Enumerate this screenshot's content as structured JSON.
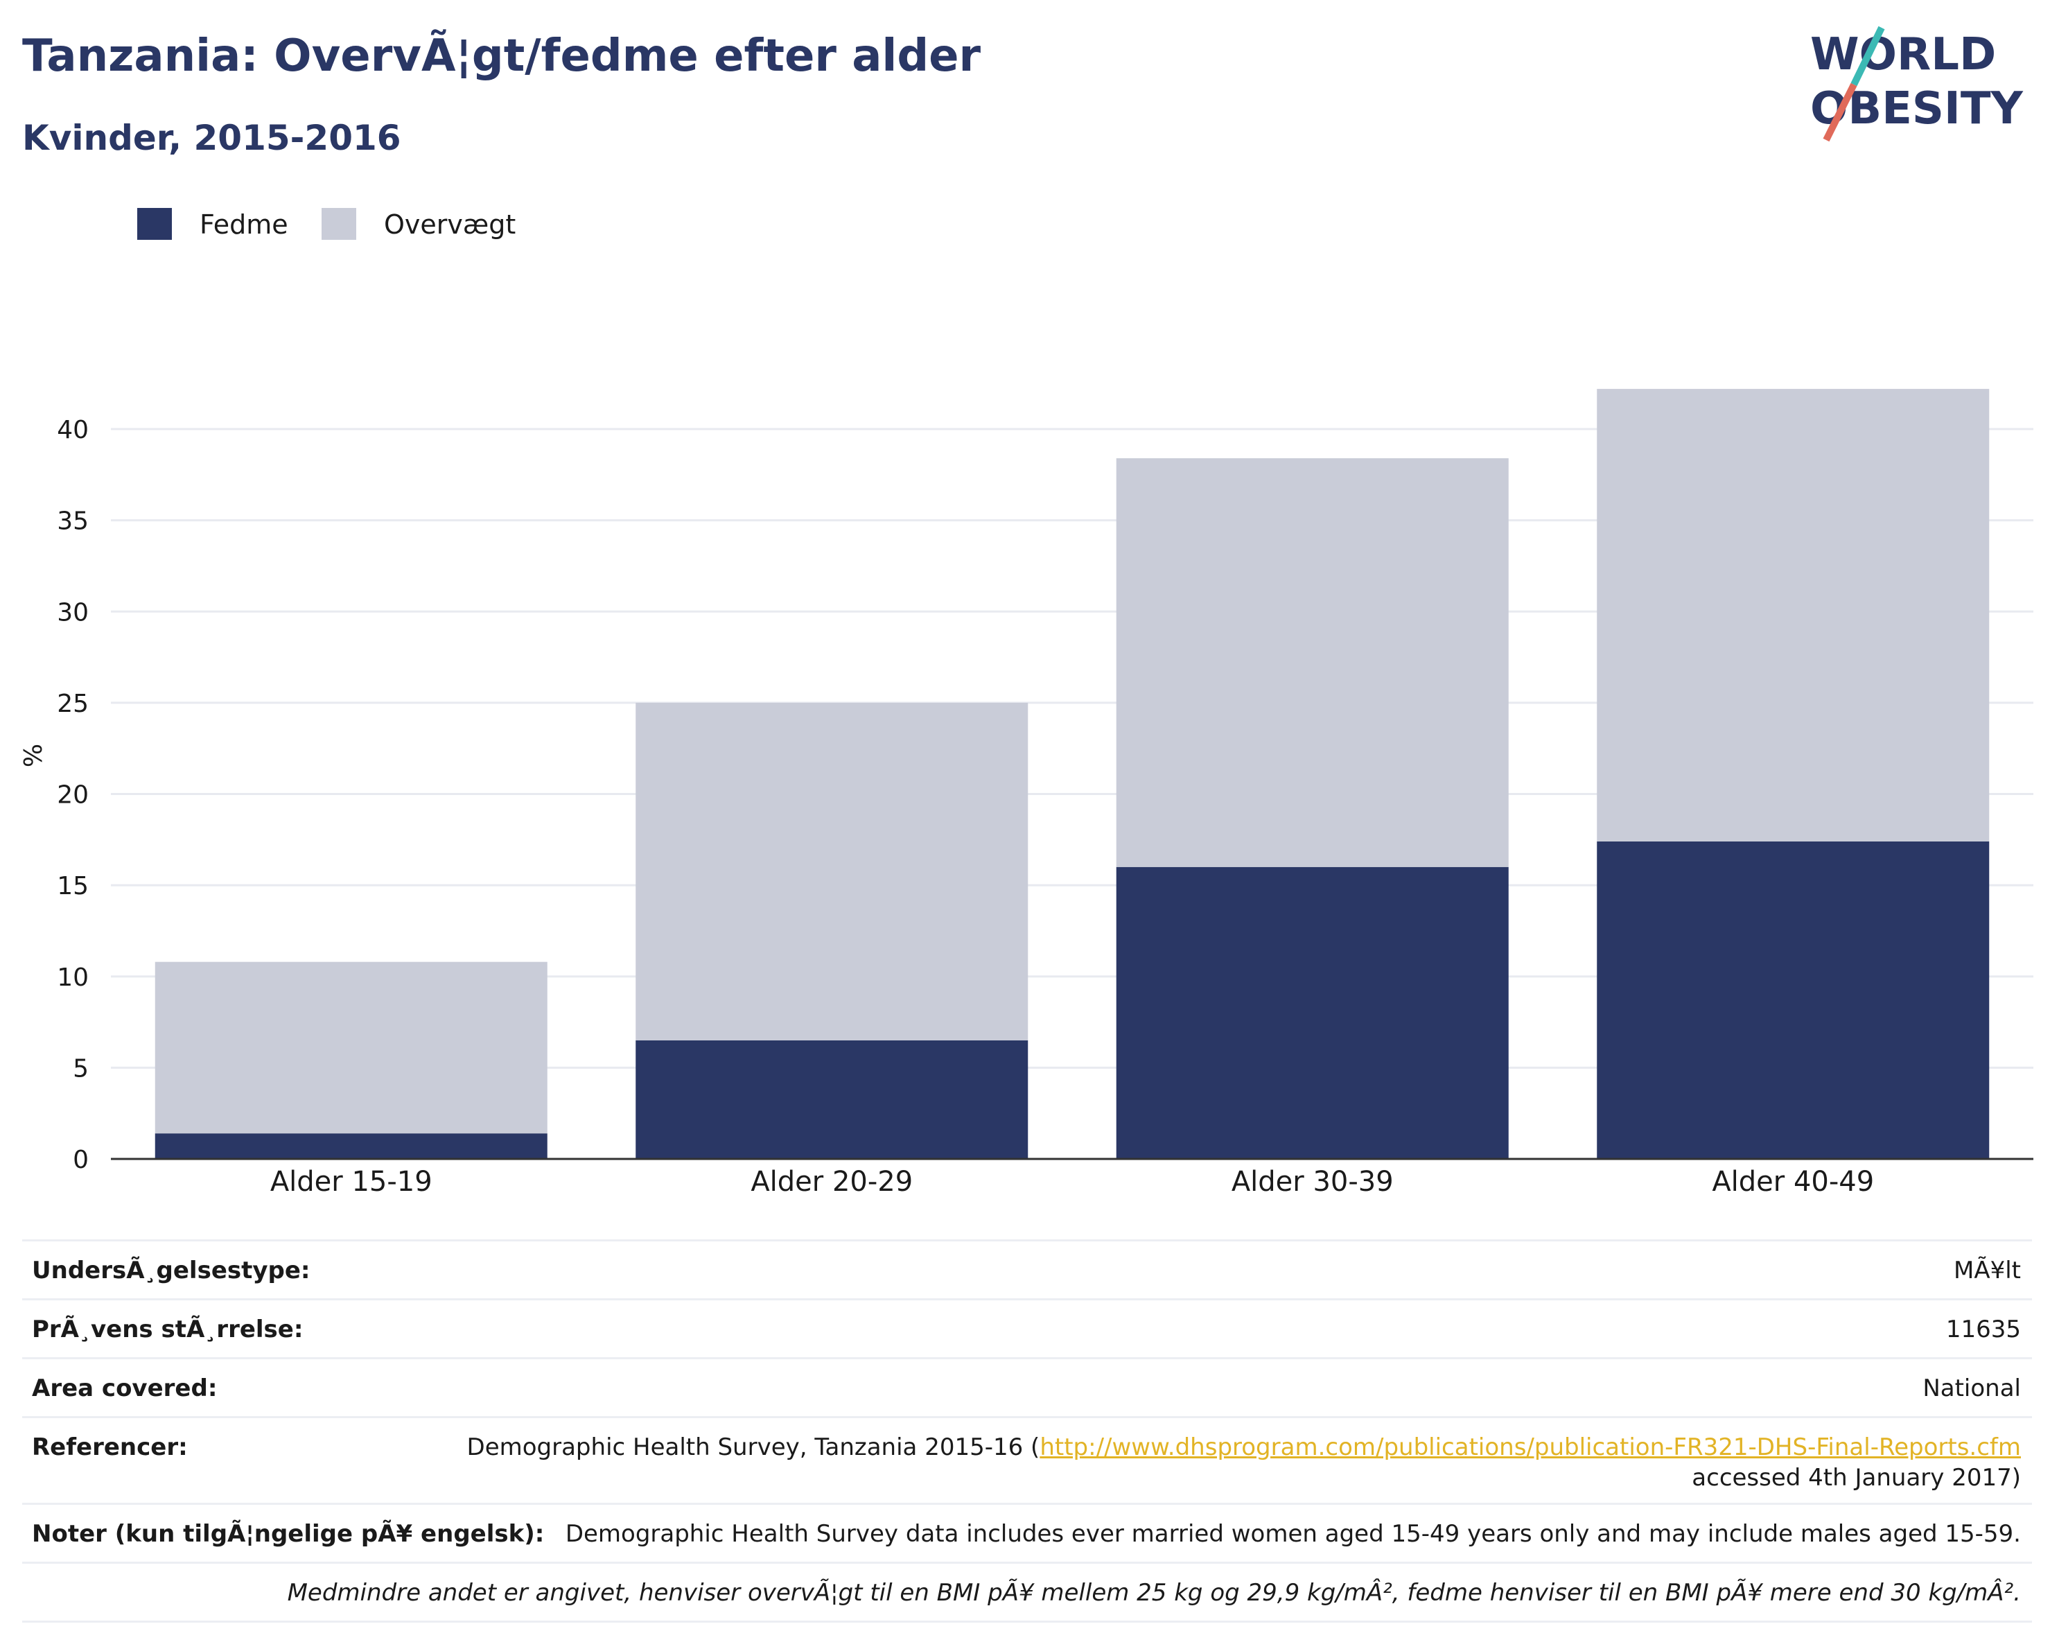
{
  "header": {
    "title": "Tanzania: OvervÃ¦gt/fedme efter alder",
    "subtitle": "Kvinder, 2015-2016",
    "logo_line1": "WORLD",
    "logo_line2": "OBESITY"
  },
  "legend": {
    "items": [
      {
        "label": "Fedme",
        "color": "#2a3765"
      },
      {
        "label": "Overvægt",
        "color": "#c9ccd8"
      }
    ]
  },
  "chart_data": {
    "type": "bar",
    "stacked": true,
    "categories": [
      "Alder 15-19",
      "Alder 20-29",
      "Alder 30-39",
      "Alder 40-49"
    ],
    "series": [
      {
        "name": "Fedme",
        "color": "#2a3765",
        "values": [
          1.4,
          6.5,
          16.0,
          17.4
        ]
      },
      {
        "name": "Overvægt",
        "color": "#c9ccd8",
        "values": [
          9.4,
          18.5,
          22.4,
          24.8
        ]
      }
    ],
    "ylabel": "%",
    "ylim": [
      0,
      43
    ],
    "yticks": [
      0,
      5,
      10,
      15,
      20,
      25,
      30,
      35,
      40
    ],
    "grid": true,
    "legend_position": "top-left"
  },
  "meta": {
    "survey_type_label": "UndersÃ¸gelsestype:",
    "survey_type_value": "MÃ¥lt",
    "sample_size_label": "PrÃ¸vens stÃ¸rrelse:",
    "sample_size_value": "11635",
    "area_label": "Area covered:",
    "area_value": "National",
    "references_label": "Referencer:",
    "references_text": "Demographic Health Survey, Tanzania 2015-16 (",
    "references_link": "http://www.dhsprogram.com/publications/publication-FR321-DHS-Final-Reports.cfm",
    "references_tail": "accessed 4th January 2017)",
    "notes_label": "Noter (kun tilgÃ¦ngelige pÃ¥ engelsk):",
    "notes_value": "Demographic Health Survey data includes ever married women aged 15-49 years only and may include males aged 15-59.",
    "footnote": "Medmindre andet er angivet, henviser overvÃ¦gt til en BMI pÃ¥ mellem 25 kg og 29,9 kg/mÂ², fedme henviser til en BMI pÃ¥ mere end 30 kg/mÂ²."
  }
}
